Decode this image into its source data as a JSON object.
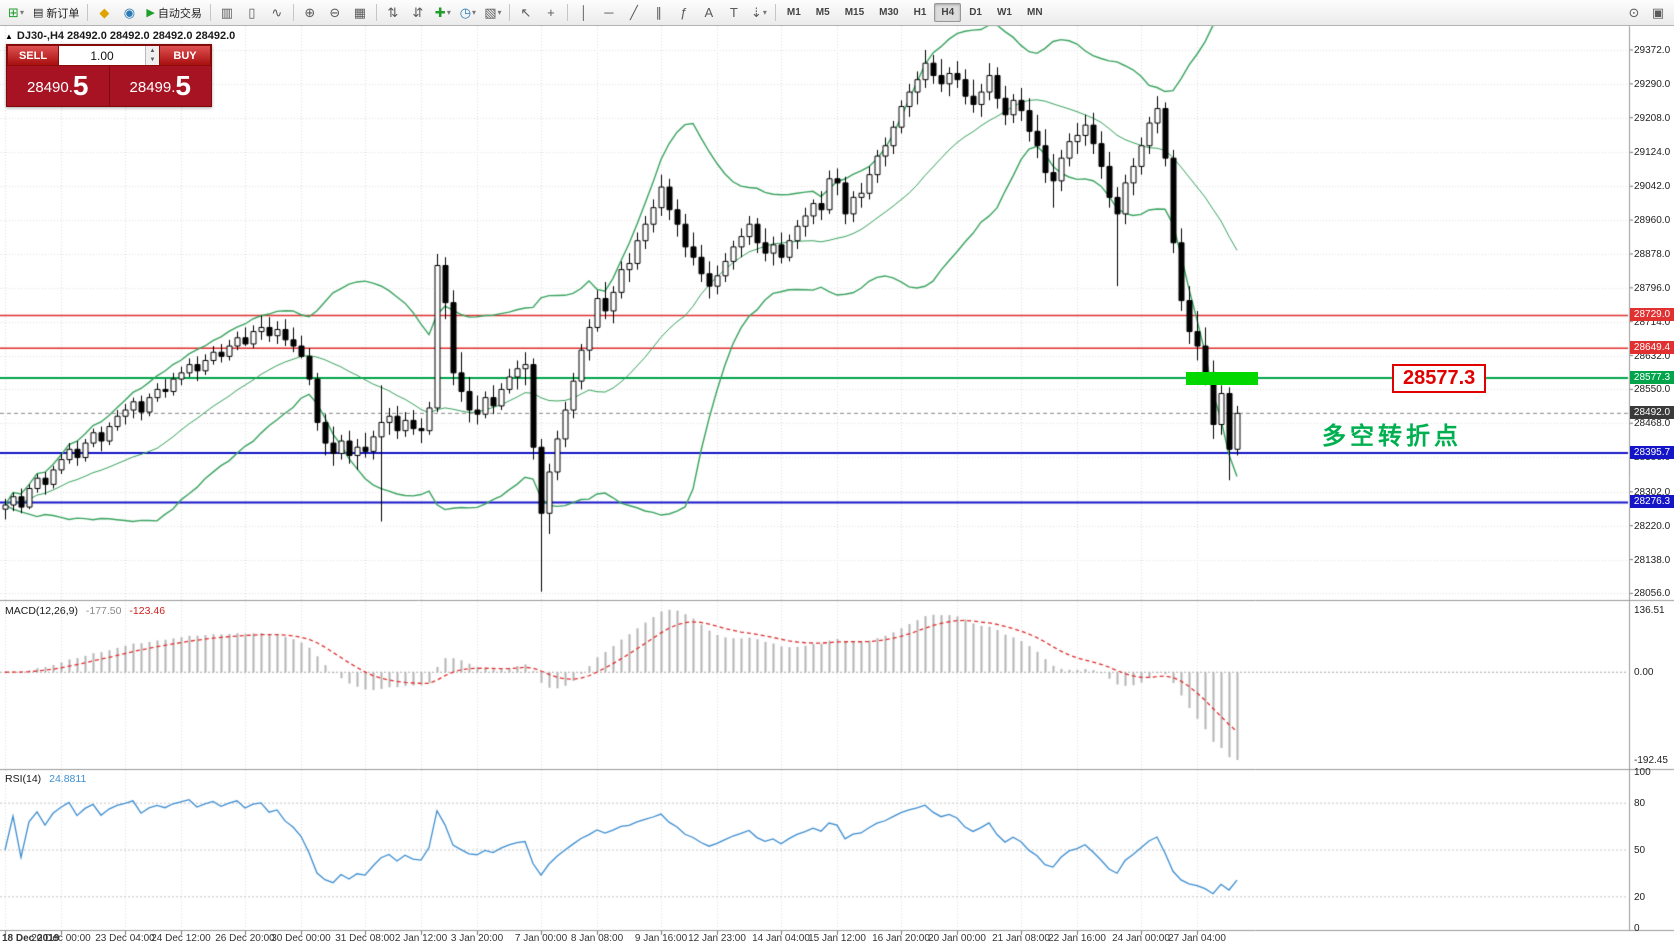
{
  "toolbar": {
    "new_order_label": "新订单",
    "auto_trading_label": "自动交易",
    "text_tool": "A",
    "label_tool": "T",
    "timeframes": [
      "M1",
      "M5",
      "M15",
      "M30",
      "H1",
      "H4",
      "D1",
      "W1",
      "MN"
    ],
    "active_timeframe": "H4"
  },
  "symbol_header": {
    "text": "DJ30-,H4 28492.0 28492.0 28492.0 28492.0"
  },
  "trade_panel": {
    "sell_label": "SELL",
    "buy_label": "BUY",
    "volume": "1.00",
    "sell_price": "28490.5",
    "buy_price": "28499.5"
  },
  "annotations": {
    "price_callout": "28577.3",
    "turning_point_text": "多空转折点"
  },
  "price_axis": {
    "ticks": [
      "29372.0",
      "29290.0",
      "29208.0",
      "29124.0",
      "29042.0",
      "28960.0",
      "28878.0",
      "28796.0",
      "28714.0",
      "28632.0",
      "28550.0",
      "28468.0",
      "28386.0",
      "28302.0",
      "28220.0",
      "28138.0",
      "28056.0"
    ],
    "tick_values": [
      29372,
      29290,
      29208,
      29124,
      29042,
      28960,
      28878,
      28796,
      28714,
      28632,
      28550,
      28468,
      28386,
      28302,
      28220,
      28138,
      28056
    ],
    "markers": [
      {
        "label": "28729.0",
        "price": 28729.0,
        "bg": "#e03030"
      },
      {
        "label": "28649.4",
        "price": 28649.4,
        "bg": "#e03030"
      },
      {
        "label": "28577.3",
        "price": 28577.3,
        "bg": "#00a44a"
      },
      {
        "label": "28492.0",
        "price": 28492.0,
        "bg": "#3a3a3a"
      },
      {
        "label": "28395.7",
        "price": 28395.7,
        "bg": "#1515c8"
      },
      {
        "label": "28276.3",
        "price": 28276.3,
        "bg": "#1515c8"
      }
    ]
  },
  "macd": {
    "label": "MACD(12,26,9)",
    "main_value": "-177.50",
    "signal_value": "-123.46",
    "axis": [
      "136.51",
      "0.00",
      "-192.45"
    ],
    "axis_values": [
      136.51,
      0,
      -192.45
    ]
  },
  "rsi": {
    "label": "RSI(14)",
    "value": "24.8811",
    "axis": [
      "100",
      "80",
      "50",
      "20",
      "0"
    ],
    "axis_values": [
      100,
      80,
      50,
      20,
      0
    ],
    "levels": [
      80,
      50,
      20
    ]
  },
  "time_axis": {
    "labels": [
      "18 Dec 2019",
      "20 Dec 00:00",
      "23 Dec 04:00",
      "24 Dec 12:00",
      "26 Dec 20:00",
      "30 Dec 00:00",
      "31 Dec 08:00",
      "2 Jan 12:00",
      "3 Jan 20:00",
      "7 Jan 00:00",
      "8 Jan 08:00",
      "9 Jan 16:00",
      "12 Jan 23:00",
      "14 Jan 04:00",
      "15 Jan 12:00",
      "16 Jan 20:00",
      "20 Jan 00:00",
      "21 Jan 08:00",
      "22 Jan 16:00",
      "24 Jan 00:00",
      "27 Jan 04:00"
    ]
  },
  "chart_data": {
    "type": "candlestick",
    "symbol": "DJ30-",
    "timeframe": "H4",
    "price_range": [
      28040,
      29430
    ],
    "current_price": 28492.0,
    "gridline_indices": [
      0,
      7,
      15,
      22,
      30,
      37,
      45,
      52,
      59,
      67,
      74,
      82,
      89,
      97,
      104,
      112,
      119,
      127,
      134,
      142,
      149
    ],
    "hlines": [
      {
        "price": 28729.0,
        "color": "#e03030",
        "width": 1.5
      },
      {
        "price": 28649.4,
        "color": "#e03030",
        "width": 1.5
      },
      {
        "price": 28577.3,
        "color": "#00a44a",
        "width": 2
      },
      {
        "price": 28395.7,
        "color": "#1515c8",
        "width": 2
      },
      {
        "price": 28276.3,
        "color": "#1515c8",
        "width": 2
      }
    ],
    "bollinger": {
      "period": 20,
      "deviation": 2,
      "color": "#3aa35f"
    },
    "highlight_box": {
      "price": 28577.3,
      "color": "#00d800"
    },
    "macd_scale_min": -192.45,
    "macd_scale_max": 136.51,
    "candles": [
      [
        28260,
        28285,
        28235,
        28270
      ],
      [
        28270,
        28300,
        28255,
        28290
      ],
      [
        28290,
        28310,
        28250,
        28265
      ],
      [
        28265,
        28320,
        28260,
        28310
      ],
      [
        28310,
        28345,
        28300,
        28335
      ],
      [
        28335,
        28350,
        28295,
        28320
      ],
      [
        28320,
        28365,
        28310,
        28355
      ],
      [
        28355,
        28395,
        28345,
        28380
      ],
      [
        28380,
        28420,
        28370,
        28405
      ],
      [
        28405,
        28425,
        28365,
        28385
      ],
      [
        28385,
        28430,
        28375,
        28420
      ],
      [
        28420,
        28455,
        28410,
        28445
      ],
      [
        28445,
        28460,
        28400,
        28425
      ],
      [
        28425,
        28470,
        28415,
        28460
      ],
      [
        28460,
        28500,
        28450,
        28485
      ],
      [
        28485,
        28515,
        28465,
        28500
      ],
      [
        28500,
        28530,
        28480,
        28520
      ],
      [
        28520,
        28535,
        28475,
        28495
      ],
      [
        28495,
        28540,
        28485,
        28530
      ],
      [
        28530,
        28565,
        28520,
        28550
      ],
      [
        28550,
        28575,
        28530,
        28545
      ],
      [
        28545,
        28590,
        28535,
        28575
      ],
      [
        28575,
        28605,
        28560,
        28590
      ],
      [
        28590,
        28625,
        28580,
        28610
      ],
      [
        28610,
        28630,
        28570,
        28595
      ],
      [
        28595,
        28635,
        28585,
        28620
      ],
      [
        28620,
        28655,
        28610,
        28640
      ],
      [
        28640,
        28660,
        28615,
        28630
      ],
      [
        28630,
        28670,
        28620,
        28655
      ],
      [
        28655,
        28690,
        28645,
        28675
      ],
      [
        28675,
        28700,
        28655,
        28660
      ],
      [
        28660,
        28705,
        28650,
        28690
      ],
      [
        28690,
        28729,
        28670,
        28700
      ],
      [
        28700,
        28725,
        28665,
        28680
      ],
      [
        28680,
        28715,
        28660,
        28695
      ],
      [
        28695,
        28720,
        28655,
        28670
      ],
      [
        28670,
        28700,
        28640,
        28655
      ],
      [
        28655,
        28680,
        28625,
        28630
      ],
      [
        28630,
        28650,
        28560,
        28575
      ],
      [
        28575,
        28590,
        28450,
        28470
      ],
      [
        28470,
        28490,
        28390,
        28420
      ],
      [
        28420,
        28460,
        28365,
        28395
      ],
      [
        28395,
        28440,
        28380,
        28425
      ],
      [
        28425,
        28450,
        28370,
        28390
      ],
      [
        28390,
        28430,
        28355,
        28410
      ],
      [
        28410,
        28445,
        28385,
        28400
      ],
      [
        28400,
        28450,
        28380,
        28435
      ],
      [
        28435,
        28560,
        28230,
        28470
      ],
      [
        28470,
        28505,
        28440,
        28485
      ],
      [
        28485,
        28510,
        28430,
        28450
      ],
      [
        28450,
        28495,
        28435,
        28475
      ],
      [
        28475,
        28500,
        28440,
        28455
      ],
      [
        28455,
        28480,
        28420,
        28450
      ],
      [
        28450,
        28520,
        28440,
        28505
      ],
      [
        28505,
        28878,
        28495,
        28850
      ],
      [
        28850,
        28870,
        28720,
        28760
      ],
      [
        28760,
        28790,
        28560,
        28590
      ],
      [
        28590,
        28640,
        28520,
        28545
      ],
      [
        28545,
        28580,
        28470,
        28500
      ],
      [
        28500,
        28535,
        28465,
        28490
      ],
      [
        28490,
        28545,
        28480,
        28530
      ],
      [
        28530,
        28560,
        28490,
        28510
      ],
      [
        28510,
        28565,
        28500,
        28550
      ],
      [
        28550,
        28600,
        28540,
        28580
      ],
      [
        28580,
        28620,
        28550,
        28600
      ],
      [
        28600,
        28640,
        28560,
        28610
      ],
      [
        28610,
        28625,
        28380,
        28410
      ],
      [
        28410,
        28430,
        28060,
        28250
      ],
      [
        28250,
        28370,
        28200,
        28350
      ],
      [
        28350,
        28450,
        28330,
        28430
      ],
      [
        28430,
        28520,
        28410,
        28500
      ],
      [
        28500,
        28590,
        28480,
        28570
      ],
      [
        28570,
        28660,
        28550,
        28645
      ],
      [
        28645,
        28720,
        28620,
        28700
      ],
      [
        28700,
        28790,
        28690,
        28770
      ],
      [
        28770,
        28810,
        28720,
        28740
      ],
      [
        28740,
        28800,
        28710,
        28785
      ],
      [
        28785,
        28860,
        28770,
        28840
      ],
      [
        28840,
        28880,
        28810,
        28855
      ],
      [
        28855,
        28930,
        28840,
        28910
      ],
      [
        28910,
        28970,
        28890,
        28950
      ],
      [
        28950,
        29010,
        28930,
        28990
      ],
      [
        28990,
        29070,
        28970,
        29040
      ],
      [
        29040,
        29060,
        28960,
        28985
      ],
      [
        28985,
        29010,
        28920,
        28950
      ],
      [
        28950,
        28975,
        28870,
        28895
      ],
      [
        28895,
        28930,
        28850,
        28870
      ],
      [
        28870,
        28900,
        28810,
        28830
      ],
      [
        28830,
        28860,
        28770,
        28800
      ],
      [
        28800,
        28850,
        28780,
        28825
      ],
      [
        28825,
        28880,
        28810,
        28860
      ],
      [
        28860,
        28910,
        28840,
        28895
      ],
      [
        28895,
        28940,
        28870,
        28920
      ],
      [
        28920,
        28970,
        28900,
        28950
      ],
      [
        28950,
        28965,
        28880,
        28905
      ],
      [
        28905,
        28940,
        28860,
        28880
      ],
      [
        28880,
        28920,
        28850,
        28900
      ],
      [
        28900,
        28930,
        28855,
        28870
      ],
      [
        28870,
        28925,
        28860,
        28910
      ],
      [
        28910,
        28960,
        28890,
        28945
      ],
      [
        28945,
        28990,
        28920,
        28970
      ],
      [
        28970,
        29010,
        28950,
        29000
      ],
      [
        29000,
        29030,
        28960,
        28985
      ],
      [
        28985,
        29080,
        28975,
        29060
      ],
      [
        29060,
        29085,
        29020,
        29050
      ],
      [
        29050,
        29065,
        28950,
        28975
      ],
      [
        28975,
        29030,
        28955,
        29015
      ],
      [
        29015,
        29050,
        28990,
        29025
      ],
      [
        29025,
        29090,
        29010,
        29070
      ],
      [
        29070,
        29130,
        29050,
        29115
      ],
      [
        29115,
        29160,
        29090,
        29140
      ],
      [
        29140,
        29200,
        29120,
        29185
      ],
      [
        29185,
        29250,
        29170,
        29235
      ],
      [
        29235,
        29290,
        29210,
        29270
      ],
      [
        29270,
        29320,
        29240,
        29300
      ],
      [
        29300,
        29372,
        29280,
        29340
      ],
      [
        29340,
        29360,
        29290,
        29310
      ],
      [
        29310,
        29350,
        29270,
        29290
      ],
      [
        29290,
        29330,
        29260,
        29315
      ],
      [
        29315,
        29345,
        29280,
        29300
      ],
      [
        29300,
        29325,
        29240,
        29260
      ],
      [
        29260,
        29300,
        29220,
        29240
      ],
      [
        29240,
        29290,
        29210,
        29270
      ],
      [
        29270,
        29340,
        29250,
        29310
      ],
      [
        29310,
        29330,
        29230,
        29255
      ],
      [
        29255,
        29285,
        29190,
        29215
      ],
      [
        29215,
        29265,
        29195,
        29250
      ],
      [
        29250,
        29280,
        29200,
        29225
      ],
      [
        29225,
        29255,
        29150,
        29175
      ],
      [
        29175,
        29215,
        29110,
        29140
      ],
      [
        29140,
        29180,
        29050,
        29075
      ],
      [
        29075,
        29120,
        28990,
        29055
      ],
      [
        29055,
        29130,
        29030,
        29110
      ],
      [
        29110,
        29170,
        29090,
        29150
      ],
      [
        29150,
        29195,
        29120,
        29165
      ],
      [
        29165,
        29215,
        29140,
        29190
      ],
      [
        29190,
        29220,
        29120,
        29145
      ],
      [
        29145,
        29175,
        29060,
        29090
      ],
      [
        29090,
        29125,
        28990,
        29015
      ],
      [
        29015,
        29040,
        28800,
        28975
      ],
      [
        28975,
        29070,
        28950,
        29050
      ],
      [
        29050,
        29110,
        29020,
        29090
      ],
      [
        29090,
        29160,
        29070,
        29140
      ],
      [
        29140,
        29210,
        29120,
        29195
      ],
      [
        29195,
        29260,
        29170,
        29230
      ],
      [
        29230,
        29245,
        29090,
        29110
      ],
      [
        29110,
        29130,
        28880,
        28905
      ],
      [
        28905,
        28940,
        28740,
        28765
      ],
      [
        28765,
        28800,
        28660,
        28690
      ],
      [
        28690,
        28740,
        28620,
        28655
      ],
      [
        28655,
        28700,
        28560,
        28590
      ],
      [
        28590,
        28620,
        28430,
        28465
      ],
      [
        28465,
        28560,
        28440,
        28540
      ],
      [
        28540,
        28555,
        28330,
        28405
      ],
      [
        28405,
        28510,
        28390,
        28492
      ]
    ]
  }
}
